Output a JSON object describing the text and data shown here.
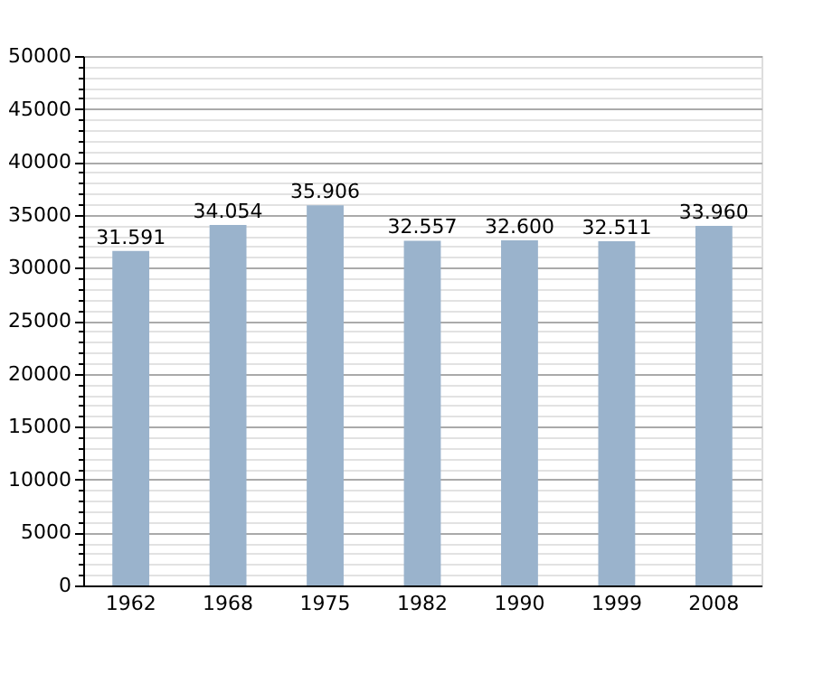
{
  "chart_data": {
    "type": "bar",
    "categories": [
      "1962",
      "1968",
      "1975",
      "1982",
      "1990",
      "1999",
      "2008"
    ],
    "values": [
      31591,
      34054,
      35906,
      32557,
      32600,
      32511,
      33960
    ],
    "value_labels": [
      "31.591",
      "34.054",
      "35.906",
      "32.557",
      "32.600",
      "32.511",
      "33.960"
    ],
    "color": "#9ab3cc",
    "ylim": [
      0,
      50000
    ],
    "yticks": [
      0,
      {
        "value": 1000,
        "label": null
      },
      {
        "value": 2000,
        "label": null
      },
      {
        "value": 3000,
        "label": null
      },
      {
        "value": 4000,
        "label": null
      },
      5000,
      {
        "value": 6000,
        "label": null
      },
      {
        "value": 7000,
        "label": null
      },
      {
        "value": 8000,
        "label": null
      },
      {
        "value": 9000,
        "label": null
      },
      10000,
      {
        "value": 11000,
        "label": null
      },
      {
        "value": 12000,
        "label": null
      },
      {
        "value": 13000,
        "label": null
      },
      {
        "value": 14000,
        "label": null
      },
      15000,
      {
        "value": 16000,
        "label": null
      },
      {
        "value": 17000,
        "label": null
      },
      {
        "value": 18000,
        "label": null
      },
      {
        "value": 19000,
        "label": null
      },
      20000,
      {
        "value": 21000,
        "label": null
      },
      {
        "value": 22000,
        "label": null
      },
      {
        "value": 23000,
        "label": null
      },
      {
        "value": 24000,
        "label": null
      },
      25000,
      {
        "value": 26000,
        "label": null
      },
      {
        "value": 27000,
        "label": null
      },
      {
        "value": 28000,
        "label": null
      },
      {
        "value": 29000,
        "label": null
      },
      30000,
      {
        "value": 31000,
        "label": null
      },
      {
        "value": 32000,
        "label": null
      },
      {
        "value": 33000,
        "label": null
      },
      {
        "value": 34000,
        "label": null
      },
      35000,
      {
        "value": 36000,
        "label": null
      },
      {
        "value": 37000,
        "label": null
      },
      {
        "value": 38000,
        "label": null
      },
      {
        "value": 39000,
        "label": null
      },
      40000,
      {
        "value": 41000,
        "label": null
      },
      {
        "value": 42000,
        "label": null
      },
      {
        "value": 43000,
        "label": null
      },
      {
        "value": 44000,
        "label": null
      },
      45000,
      {
        "value": 46000,
        "label": null
      },
      {
        "value": 47000,
        "label": null
      },
      {
        "value": 48000,
        "label": null
      },
      {
        "value": 49000,
        "label": null
      },
      50000
    ],
    "grid": "y"
  }
}
